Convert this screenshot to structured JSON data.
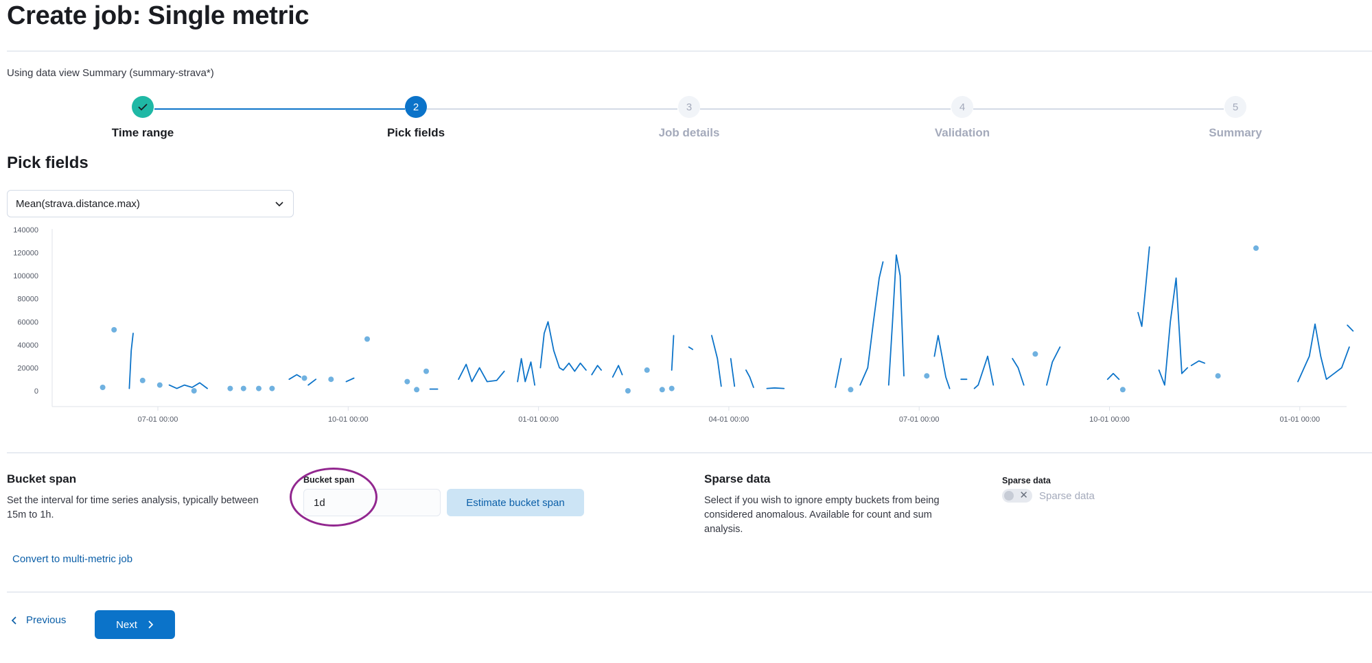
{
  "page_title": "Create job: Single metric",
  "data_view_text": "Using data view Summary (summary-strava*)",
  "steps": [
    {
      "number": "1",
      "label": "Time range",
      "state": "done"
    },
    {
      "number": "2",
      "label": "Pick fields",
      "state": "current"
    },
    {
      "number": "3",
      "label": "Job details",
      "state": "todo"
    },
    {
      "number": "4",
      "label": "Validation",
      "state": "todo"
    },
    {
      "number": "5",
      "label": "Summary",
      "state": "todo"
    }
  ],
  "section_title": "Pick fields",
  "field_select": {
    "value": "Mean(strava.distance.max)"
  },
  "bucket_span": {
    "title": "Bucket span",
    "description_line1": "Set the interval for time series analysis, typically between",
    "description_line2": "15m to 1h.",
    "field_label": "Bucket span",
    "value": "1d",
    "estimate_label": "Estimate bucket span"
  },
  "sparse_data": {
    "title": "Sparse data",
    "description_line1": "Select if you wish to ignore empty buckets from being",
    "description_line2": "considered anomalous. Available for count and sum",
    "description_line3": "analysis.",
    "field_label": "Sparse data",
    "toggle_label": "Sparse data",
    "checked": false
  },
  "convert_link": "Convert to multi-metric job",
  "footer": {
    "previous": "Previous",
    "next": "Next"
  },
  "colors": {
    "line": "#0b73c9",
    "dot": "#6fb1e0",
    "accent": "#0b73c9",
    "done": "#1fb8a5",
    "ring": "#92278f"
  },
  "chart_data": {
    "type": "line",
    "y_ticks": [
      0,
      20000,
      40000,
      60000,
      80000,
      100000,
      120000,
      140000
    ],
    "ylim": [
      0,
      140000
    ],
    "x_ticks": [
      "07-01 00:00",
      "10-01 00:00",
      "01-01 00:00",
      "04-01 00:00",
      "07-01 00:00",
      "10-01 00:00",
      "01-01 00:00"
    ],
    "x_domain": [
      -0.55,
      6.25
    ],
    "segments": [
      [
        [
          -0.15,
          2000
        ],
        [
          -0.14,
          35000
        ],
        [
          -0.13,
          50000
        ]
      ],
      [
        [
          0.06,
          5000
        ],
        [
          0.1,
          2000
        ],
        [
          0.14,
          5000
        ],
        [
          0.18,
          3000
        ],
        [
          0.22,
          7000
        ],
        [
          0.26,
          2000
        ]
      ],
      [
        [
          0.69,
          10000
        ],
        [
          0.73,
          14000
        ],
        [
          0.75,
          12000
        ]
      ],
      [
        [
          0.79,
          5000
        ],
        [
          0.83,
          10000
        ]
      ],
      [
        [
          0.99,
          8000
        ],
        [
          1.03,
          11000
        ]
      ],
      [
        [
          1.43,
          1500
        ],
        [
          1.47,
          1500
        ]
      ],
      [
        [
          1.58,
          10000
        ],
        [
          1.62,
          23000
        ],
        [
          1.65,
          8000
        ],
        [
          1.69,
          20000
        ],
        [
          1.73,
          8000
        ],
        [
          1.78,
          9000
        ],
        [
          1.82,
          17000
        ]
      ],
      [
        [
          1.89,
          8000
        ],
        [
          1.91,
          28000
        ],
        [
          1.93,
          8000
        ],
        [
          1.96,
          25000
        ],
        [
          1.98,
          5000
        ]
      ],
      [
        [
          2.01,
          20000
        ],
        [
          2.03,
          50000
        ],
        [
          2.05,
          60000
        ],
        [
          2.08,
          35000
        ],
        [
          2.11,
          20000
        ],
        [
          2.13,
          18000
        ],
        [
          2.16,
          24000
        ],
        [
          2.19,
          17000
        ],
        [
          2.22,
          24000
        ],
        [
          2.25,
          18000
        ]
      ],
      [
        [
          2.28,
          14000
        ],
        [
          2.31,
          22000
        ],
        [
          2.33,
          18000
        ]
      ],
      [
        [
          2.39,
          12000
        ],
        [
          2.42,
          22000
        ],
        [
          2.44,
          14000
        ]
      ],
      [
        [
          2.7,
          18000
        ],
        [
          2.71,
          48000
        ]
      ],
      [
        [
          2.79,
          38000
        ],
        [
          2.81,
          36000
        ]
      ],
      [
        [
          2.91,
          48000
        ],
        [
          2.94,
          28000
        ],
        [
          2.96,
          4000
        ]
      ],
      [
        [
          3.01,
          28000
        ],
        [
          3.03,
          4000
        ]
      ],
      [
        [
          3.09,
          18000
        ],
        [
          3.11,
          12000
        ],
        [
          3.13,
          3000
        ]
      ],
      [
        [
          3.2,
          2000
        ],
        [
          3.24,
          2500
        ],
        [
          3.29,
          2000
        ]
      ],
      [
        [
          3.56,
          3000
        ],
        [
          3.59,
          28000
        ]
      ],
      [
        [
          3.69,
          5000
        ],
        [
          3.73,
          20000
        ],
        [
          3.76,
          60000
        ],
        [
          3.79,
          98000
        ],
        [
          3.81,
          112000
        ]
      ],
      [
        [
          3.84,
          5000
        ],
        [
          3.86,
          60000
        ],
        [
          3.88,
          118000
        ],
        [
          3.9,
          100000
        ],
        [
          3.92,
          13000
        ]
      ],
      [
        [
          4.08,
          30000
        ],
        [
          4.1,
          48000
        ],
        [
          4.12,
          30000
        ],
        [
          4.14,
          12000
        ],
        [
          4.16,
          2000
        ]
      ],
      [
        [
          4.22,
          10000
        ],
        [
          4.25,
          10000
        ]
      ],
      [
        [
          4.29,
          2000
        ],
        [
          4.31,
          5000
        ],
        [
          4.34,
          20000
        ],
        [
          4.36,
          30000
        ],
        [
          4.39,
          5000
        ]
      ],
      [
        [
          4.49,
          28000
        ],
        [
          4.52,
          20000
        ],
        [
          4.55,
          5000
        ]
      ],
      [
        [
          4.67,
          5000
        ],
        [
          4.7,
          25000
        ],
        [
          4.74,
          38000
        ]
      ],
      [
        [
          4.99,
          10000
        ],
        [
          5.02,
          15000
        ],
        [
          5.05,
          10000
        ]
      ],
      [
        [
          5.15,
          68000
        ],
        [
          5.17,
          56000
        ],
        [
          5.19,
          90000
        ],
        [
          5.21,
          125000
        ]
      ],
      [
        [
          5.26,
          18000
        ],
        [
          5.29,
          5000
        ],
        [
          5.32,
          60000
        ],
        [
          5.35,
          98000
        ],
        [
          5.38,
          15000
        ],
        [
          5.41,
          20000
        ]
      ],
      [
        [
          5.43,
          22000
        ],
        [
          5.47,
          26000
        ],
        [
          5.5,
          24000
        ]
      ],
      [
        [
          5.99,
          8000
        ],
        [
          6.05,
          30000
        ],
        [
          6.08,
          58000
        ],
        [
          6.11,
          30000
        ],
        [
          6.14,
          10000
        ],
        [
          6.18,
          15000
        ],
        [
          6.22,
          20000
        ],
        [
          6.26,
          38000
        ]
      ],
      [
        [
          6.25,
          57000
        ],
        [
          6.28,
          52000
        ]
      ]
    ],
    "points": [
      [
        -0.29,
        3000
      ],
      [
        -0.23,
        53000
      ],
      [
        -0.08,
        9000
      ],
      [
        0.01,
        5000
      ],
      [
        0.19,
        0
      ],
      [
        0.38,
        2000
      ],
      [
        0.45,
        2000
      ],
      [
        0.53,
        2000
      ],
      [
        0.6,
        2000
      ],
      [
        0.77,
        11000
      ],
      [
        0.91,
        10000
      ],
      [
        1.1,
        45000
      ],
      [
        1.31,
        8000
      ],
      [
        1.36,
        1000
      ],
      [
        1.41,
        17000
      ],
      [
        2.47,
        0
      ],
      [
        2.57,
        18000
      ],
      [
        2.65,
        1000
      ],
      [
        2.7,
        2000
      ],
      [
        3.64,
        1000
      ],
      [
        4.04,
        13000
      ],
      [
        4.61,
        32000
      ],
      [
        5.07,
        1000
      ],
      [
        5.57,
        13000
      ],
      [
        5.77,
        124000
      ]
    ]
  }
}
